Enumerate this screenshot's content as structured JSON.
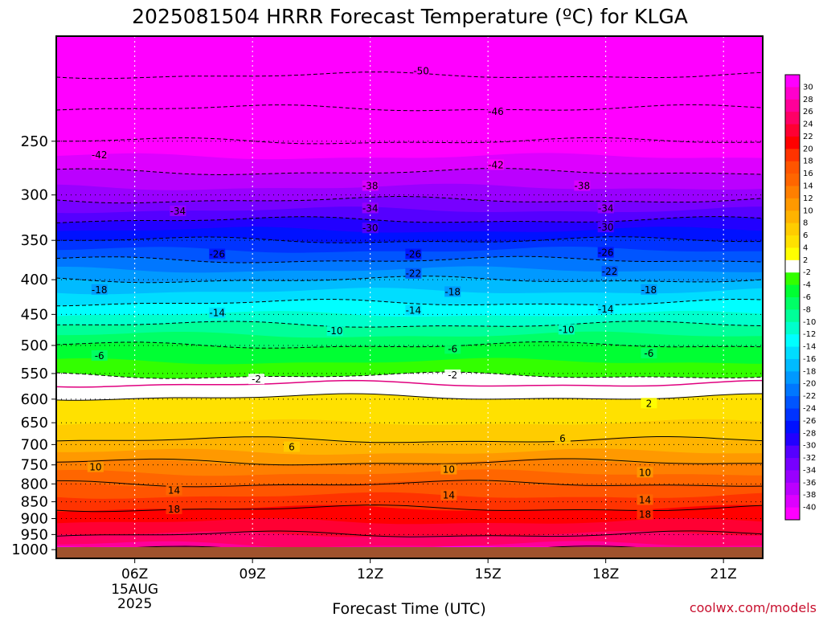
{
  "chart_data": {
    "type": "heatmap",
    "title": "2025081504 HRRR Forecast Temperature (ºC) for KLGA",
    "xlabel": "Forecast Time (UTC)",
    "credit": "coolwx.com/models",
    "x_ticks": [
      {
        "hour": 6,
        "label": "06Z",
        "sub1": "15AUG",
        "sub2": "2025"
      },
      {
        "hour": 9,
        "label": "09Z"
      },
      {
        "hour": 12,
        "label": "12Z"
      },
      {
        "hour": 15,
        "label": "15Z"
      },
      {
        "hour": 18,
        "label": "18Z"
      },
      {
        "hour": 21,
        "label": "21Z"
      }
    ],
    "xlim": [
      4,
      22
    ],
    "y_axis": {
      "type": "log",
      "units": "hPa",
      "ylim": [
        1030,
        175
      ],
      "ticks": [
        250,
        300,
        350,
        400,
        450,
        500,
        550,
        600,
        650,
        700,
        750,
        800,
        850,
        900,
        950,
        1000
      ]
    },
    "colorbar": {
      "labels": [
        30,
        28,
        26,
        24,
        22,
        20,
        18,
        16,
        14,
        12,
        10,
        8,
        6,
        4,
        2,
        -2,
        -4,
        -6,
        -8,
        -10,
        -12,
        -14,
        -16,
        -18,
        -20,
        -22,
        -24,
        -26,
        -28,
        -30,
        -32,
        -34,
        -36,
        -38,
        -40
      ],
      "colors": [
        "#ff00ff",
        "#ff00cc",
        "#ff0099",
        "#ff0066",
        "#ff0033",
        "#ff0000",
        "#ff3300",
        "#ff5500",
        "#ff6600",
        "#ff7f00",
        "#ff9900",
        "#ffb300",
        "#ffcc00",
        "#ffe100",
        "#ffff00",
        "#ffffff",
        "#33ff00",
        "#00ff33",
        "#00ff66",
        "#00ff99",
        "#00ffcc",
        "#00ffff",
        "#00ddff",
        "#00bbff",
        "#0099ff",
        "#0077ff",
        "#0055ff",
        "#0033ff",
        "#0011ff",
        "#2200ff",
        "#5500ff",
        "#7700ff",
        "#9900ff",
        "#bb00ff",
        "#dd00ff",
        "#ff00ff"
      ]
    },
    "isotherm_profile": [
      {
        "p": 1000,
        "t": 25
      },
      {
        "p": 950,
        "t": 22
      },
      {
        "p": 900,
        "t": 19.5
      },
      {
        "p": 850,
        "t": 17
      },
      {
        "p": 800,
        "t": 14
      },
      {
        "p": 750,
        "t": 10.5
      },
      {
        "p": 700,
        "t": 6.5
      },
      {
        "p": 650,
        "t": 4
      },
      {
        "p": 600,
        "t": 2.3
      },
      {
        "p": 570,
        "t": 0
      },
      {
        "p": 550,
        "t": -2.5
      },
      {
        "p": 500,
        "t": -6
      },
      {
        "p": 450,
        "t": -12
      },
      {
        "p": 400,
        "t": -18
      },
      {
        "p": 350,
        "t": -26
      },
      {
        "p": 300,
        "t": -35
      },
      {
        "p": 250,
        "t": -42
      },
      {
        "p": 200,
        "t": -50
      }
    ],
    "contour_labels": [
      {
        "text": "-50",
        "h": 13.3,
        "p": 197
      },
      {
        "text": "-46",
        "h": 15.2,
        "p": 226
      },
      {
        "text": "-42",
        "h": 5.1,
        "p": 262
      },
      {
        "text": "-42",
        "h": 15.2,
        "p": 271
      },
      {
        "text": "-38",
        "h": 12.0,
        "p": 291
      },
      {
        "text": "-38",
        "h": 17.4,
        "p": 291
      },
      {
        "text": "-34",
        "h": 7.1,
        "p": 317
      },
      {
        "text": "-34",
        "h": 12.0,
        "p": 314
      },
      {
        "text": "-34",
        "h": 18.0,
        "p": 314
      },
      {
        "text": "-30",
        "h": 12.0,
        "p": 336
      },
      {
        "text": "-30",
        "h": 18.0,
        "p": 335
      },
      {
        "text": "-26",
        "h": 8.1,
        "p": 367
      },
      {
        "text": "-26",
        "h": 13.1,
        "p": 367
      },
      {
        "text": "-26",
        "h": 18.0,
        "p": 365
      },
      {
        "text": "-22",
        "h": 13.1,
        "p": 392
      },
      {
        "text": "-22",
        "h": 18.1,
        "p": 389
      },
      {
        "text": "-18",
        "h": 5.1,
        "p": 414
      },
      {
        "text": "-18",
        "h": 14.1,
        "p": 417
      },
      {
        "text": "-18",
        "h": 19.1,
        "p": 414
      },
      {
        "text": "-14",
        "h": 8.1,
        "p": 448
      },
      {
        "text": "-14",
        "h": 13.1,
        "p": 444
      },
      {
        "text": "-14",
        "h": 18.0,
        "p": 442
      },
      {
        "text": "-10",
        "h": 11.1,
        "p": 476
      },
      {
        "text": "-10",
        "h": 17.0,
        "p": 474
      },
      {
        "text": "-6",
        "h": 5.1,
        "p": 518
      },
      {
        "text": "-6",
        "h": 14.1,
        "p": 506
      },
      {
        "text": "-6",
        "h": 19.1,
        "p": 514
      },
      {
        "text": "-2",
        "h": 9.1,
        "p": 561
      },
      {
        "text": "-2",
        "h": 14.1,
        "p": 553
      },
      {
        "text": "2",
        "h": 19.1,
        "p": 609
      },
      {
        "text": "6",
        "h": 10.0,
        "p": 706
      },
      {
        "text": "6",
        "h": 16.9,
        "p": 686
      },
      {
        "text": "10",
        "h": 5.0,
        "p": 756
      },
      {
        "text": "10",
        "h": 14.0,
        "p": 762
      },
      {
        "text": "10",
        "h": 19.0,
        "p": 770
      },
      {
        "text": "14",
        "h": 7.0,
        "p": 818
      },
      {
        "text": "14",
        "h": 14.0,
        "p": 832
      },
      {
        "text": "14",
        "h": 19.0,
        "p": 845
      },
      {
        "text": "18",
        "h": 7.0,
        "p": 872
      },
      {
        "text": "18",
        "h": 19.0,
        "p": 888
      }
    ]
  }
}
